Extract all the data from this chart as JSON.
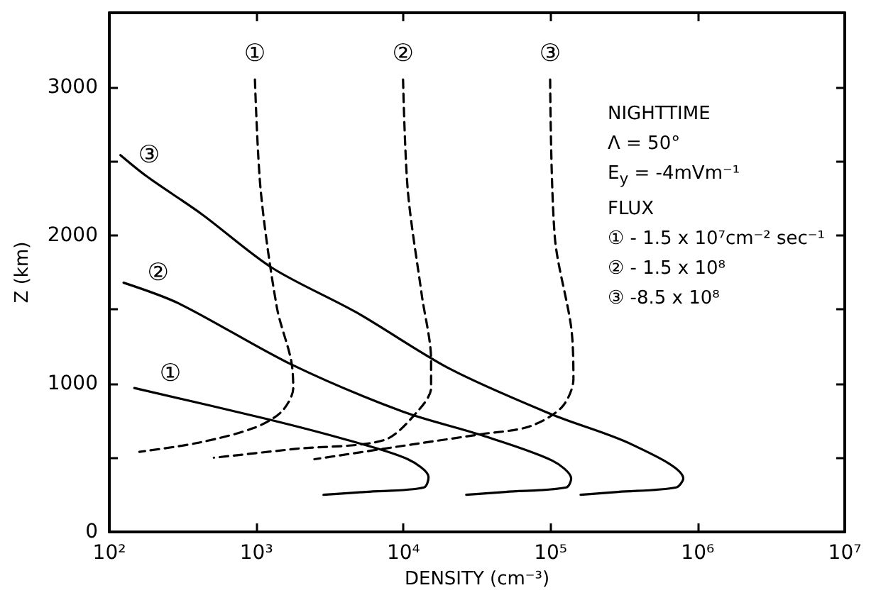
{
  "chart_data": {
    "type": "line",
    "xlabel": "DENSITY (cm⁻³)",
    "ylabel": "Z (km)",
    "log": "x",
    "grid": false,
    "legend": false,
    "marker": "none",
    "xlim": [
      100,
      10000000
    ],
    "xticks": [
      {
        "value": 100,
        "label": "10²"
      },
      {
        "value": 1000,
        "label": "10³"
      },
      {
        "value": 10000,
        "label": "10⁴"
      },
      {
        "value": 100000,
        "label": "10⁵"
      },
      {
        "value": 1000000,
        "label": "10⁶"
      },
      {
        "value": 10000000,
        "label": "10⁷"
      }
    ],
    "ylim": [
      0,
      3500
    ],
    "yticks": [
      0,
      {
        "value": 500,
        "label": null
      },
      1000,
      {
        "value": 1500,
        "label": null
      },
      2000,
      {
        "value": 2500,
        "label": null
      },
      3000
    ],
    "series": [
      {
        "name": "①",
        "color": "#000000",
        "line_style": "solid",
        "x": [
          148,
          1190,
          4130,
          10700,
          14800,
          13800,
          5530,
          2860
        ],
        "values": [
          970,
          760,
          620,
          490,
          370,
          300,
          270,
          250
        ]
      },
      {
        "name": "②",
        "color": "#000000",
        "line_style": "solid",
        "x": [
          125,
          297,
          1720,
          9930,
          34400,
          103000,
          138000,
          128000,
          49500,
          26700
        ],
        "values": [
          1680,
          1540,
          1130,
          810,
          650,
          480,
          360,
          300,
          270,
          250
        ]
      },
      {
        "name": "③",
        "color": "#000000",
        "line_style": "solid",
        "x": [
          119,
          178,
          428,
          1280,
          4780,
          20600,
          103000,
          356000,
          798000,
          714000,
          287000,
          160000
        ],
        "values": [
          2540,
          2400,
          2140,
          1780,
          1480,
          1100,
          790,
          590,
          360,
          300,
          270,
          250
        ]
      },
      {
        "color": "#000000",
        "line_style": "dashed",
        "x": [
          977,
          1070,
          1380,
          1720,
          1780,
          1480,
          957,
          398,
          160
        ],
        "values": [
          3050,
          2300,
          1510,
          1160,
          970,
          810,
          700,
          600,
          540
        ]
      },
      {
        "color": "#000000",
        "line_style": "dashed",
        "x": [
          9930,
          10700,
          13300,
          15400,
          15400,
          12400,
          7410,
          1850,
          514
        ],
        "values": [
          3050,
          2300,
          1600,
          1160,
          970,
          810,
          620,
          560,
          500
        ]
      },
      {
        "color": "#000000",
        "line_style": "dashed",
        "x": [
          99300,
          107000,
          138000,
          143000,
          119000,
          71500,
          34400,
          11500,
          2480
        ],
        "values": [
          3050,
          1980,
          1380,
          1030,
          840,
          710,
          660,
          590,
          490
        ]
      }
    ],
    "annotations": [
      {
        "text": "①",
        "x": 977,
        "y": 3050
      },
      {
        "text": "②",
        "x": 9930,
        "y": 3050
      },
      {
        "text": "③",
        "x": 99300,
        "y": 3050
      },
      "NIGHTTIME",
      "Λ = 50°",
      "E$_{y}$ = -4mVm⁻¹",
      "FLUX",
      "① - 1.5 x 10⁷cm⁻² sec⁻¹",
      "② - 1.5 x 10⁸",
      "③ -8.5 x 10⁸"
    ]
  }
}
